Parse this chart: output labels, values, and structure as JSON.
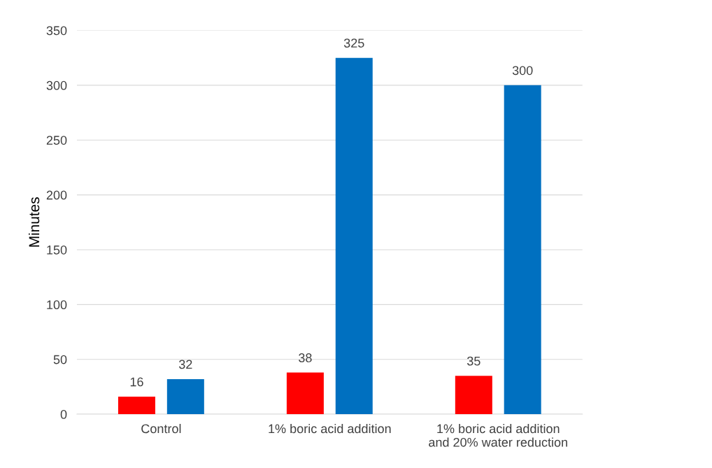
{
  "chart_data": {
    "type": "bar",
    "ylabel": "Minutes",
    "categories": [
      "Control",
      "1% boric acid addition",
      "1% boric acid addition\nand 20% water reduction"
    ],
    "series": [
      {
        "color": "#ff0000",
        "values": [
          16,
          38,
          35
        ]
      },
      {
        "color": "#0070c0",
        "values": [
          32,
          325,
          300
        ]
      }
    ],
    "ylim": [
      0,
      350
    ],
    "yticks": [
      0,
      50,
      100,
      150,
      200,
      250,
      300,
      350
    ],
    "grid": "y",
    "data_labels": true
  }
}
